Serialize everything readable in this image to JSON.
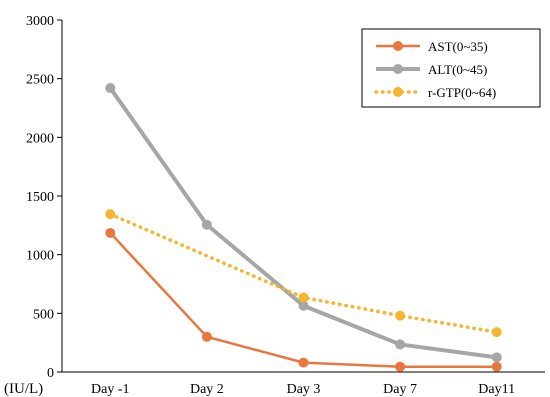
{
  "chart_data": {
    "type": "line",
    "categories": [
      "Day -1",
      "Day 2",
      "Day 3",
      "Day 7",
      "Day11"
    ],
    "ylim": [
      0,
      3000
    ],
    "yticks": [
      0,
      500,
      1000,
      1500,
      2000,
      2500,
      3000
    ],
    "unit_label": "(IU/L)",
    "grid": false,
    "legend_position": "top-right",
    "series": [
      {
        "name": "AST(0~35)",
        "values": [
          1185,
          300,
          80,
          45,
          45
        ],
        "color": "#E8773D",
        "style": "solid"
      },
      {
        "name": "ALT(0~45)",
        "values": [
          2420,
          1255,
          565,
          235,
          125
        ],
        "color": "#A6A6A6",
        "style": "solid"
      },
      {
        "name": "r-GTP(0~64)",
        "values": [
          1345,
          null,
          635,
          480,
          340
        ],
        "color": "#F4B531",
        "style": "dotted"
      }
    ]
  }
}
